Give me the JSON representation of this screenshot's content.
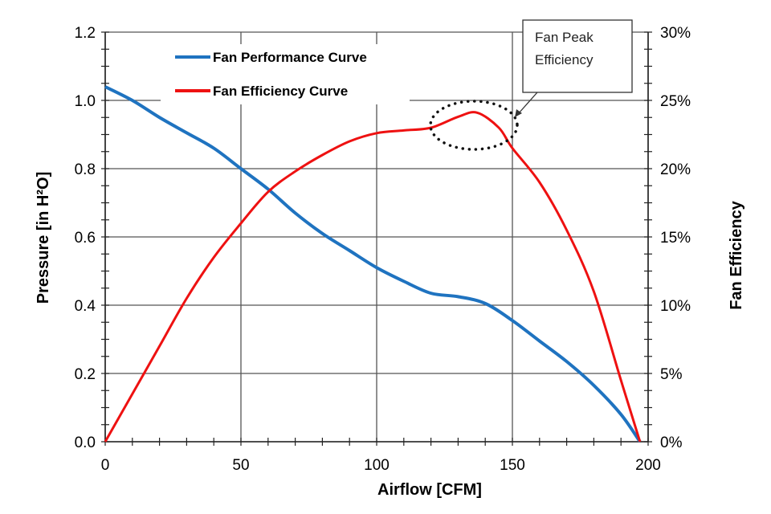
{
  "chart_data": {
    "type": "line",
    "xlabel": "Airflow [CFM]",
    "ylabel": "Pressure [in H²O]",
    "y2label": "Fan Efficiency",
    "xlim": [
      0,
      200
    ],
    "ylim": [
      0,
      1.2
    ],
    "y2lim": [
      0,
      30
    ],
    "x_ticks": [
      "0",
      "50",
      "100",
      "150",
      "200"
    ],
    "y_ticks": [
      "0.0",
      "0.2",
      "0.4",
      "0.6",
      "0.8",
      "1.0",
      "1.2"
    ],
    "y2_ticks": [
      "0%",
      "5%",
      "10%",
      "15%",
      "20%",
      "25%",
      "30%"
    ],
    "grid": true,
    "legend_position": "top-left",
    "series": [
      {
        "name": "Fan Performance Curve",
        "axis": "left",
        "color": "#1f73c0",
        "x": [
          0,
          10,
          20,
          30,
          40,
          50,
          60,
          70,
          80,
          90,
          100,
          110,
          120,
          130,
          140,
          150,
          160,
          170,
          180,
          190,
          197
        ],
        "y": [
          1.04,
          1.0,
          0.95,
          0.905,
          0.86,
          0.8,
          0.74,
          0.67,
          0.61,
          0.56,
          0.51,
          0.47,
          0.435,
          0.425,
          0.405,
          0.355,
          0.295,
          0.235,
          0.165,
          0.08,
          0.0
        ]
      },
      {
        "name": "Fan Efficiency Curve",
        "axis": "right",
        "color": "#ee1111",
        "x": [
          0,
          10,
          20,
          30,
          40,
          50,
          60,
          70,
          80,
          90,
          100,
          110,
          120,
          130,
          137,
          145,
          150,
          160,
          170,
          180,
          190,
          197
        ],
        "y": [
          0,
          3.5,
          7,
          10.5,
          13.5,
          16,
          18.3,
          19.8,
          21,
          22,
          22.6,
          22.8,
          23,
          23.8,
          24.1,
          23,
          21.5,
          19,
          15.5,
          11,
          4.5,
          0
        ]
      }
    ],
    "annotations": [
      {
        "text_line1": "Fan Peak",
        "text_line2": "Efficiency",
        "target_x": 137,
        "target_y2": 24
      }
    ]
  }
}
